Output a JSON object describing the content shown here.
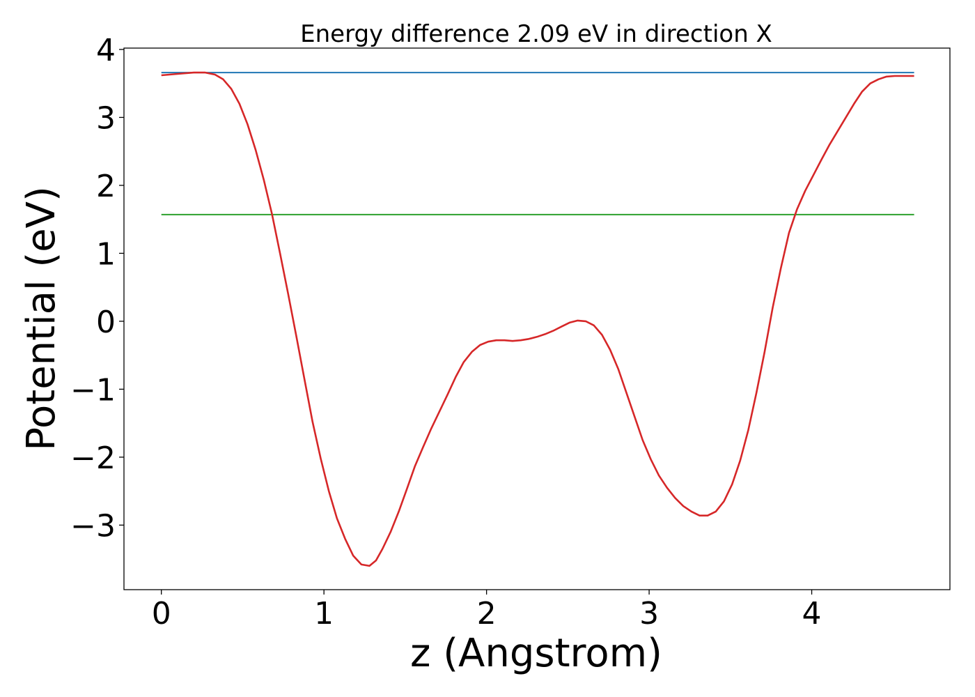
{
  "chart_data": {
    "type": "line",
    "title": "Energy difference 2.09 eV in direction X",
    "xlabel": "z (Angstrom)",
    "ylabel": "Potential (eV)",
    "xlim": [
      -0.23,
      4.85
    ],
    "ylim": [
      -3.95,
      4.02
    ],
    "x_ticks": [
      0,
      1,
      2,
      3,
      4
    ],
    "x_tick_labels": [
      "0",
      "1",
      "2",
      "3",
      "4"
    ],
    "y_ticks": [
      -3,
      -2,
      -1,
      0,
      1,
      2,
      3,
      4
    ],
    "y_tick_labels": [
      "−3",
      "−2",
      "−1",
      "0",
      "1",
      "2",
      "3",
      "4"
    ],
    "grid": false,
    "series": [
      {
        "color": "#1f77b4",
        "x": [
          0,
          4.63
        ],
        "y": [
          3.66,
          3.66
        ]
      },
      {
        "color": "#2ca02c",
        "x": [
          0,
          4.63
        ],
        "y": [
          1.57,
          1.57
        ]
      },
      {
        "color": "#d62728",
        "x": [
          0,
          0.1,
          0.2,
          0.27,
          0.33,
          0.38,
          0.43,
          0.48,
          0.53,
          0.58,
          0.63,
          0.68,
          0.73,
          0.78,
          0.83,
          0.88,
          0.93,
          0.98,
          1.03,
          1.08,
          1.13,
          1.18,
          1.23,
          1.28,
          1.32,
          1.36,
          1.41,
          1.46,
          1.51,
          1.56,
          1.61,
          1.66,
          1.71,
          1.76,
          1.81,
          1.86,
          1.91,
          1.96,
          2.01,
          2.06,
          2.11,
          2.16,
          2.21,
          2.26,
          2.31,
          2.36,
          2.41,
          2.46,
          2.51,
          2.56,
          2.61,
          2.66,
          2.71,
          2.76,
          2.81,
          2.86,
          2.91,
          2.96,
          3.01,
          3.06,
          3.11,
          3.16,
          3.21,
          3.26,
          3.31,
          3.36,
          3.41,
          3.46,
          3.51,
          3.56,
          3.61,
          3.66,
          3.71,
          3.76,
          3.81,
          3.86,
          3.91,
          3.96,
          4.01,
          4.06,
          4.11,
          4.16,
          4.21,
          4.26,
          4.31,
          4.36,
          4.41,
          4.46,
          4.51,
          4.56,
          4.63
        ],
        "y": [
          3.62,
          3.64,
          3.66,
          3.66,
          3.63,
          3.56,
          3.42,
          3.2,
          2.9,
          2.52,
          2.08,
          1.58,
          1.0,
          0.4,
          -0.22,
          -0.85,
          -1.48,
          -2.02,
          -2.5,
          -2.9,
          -3.2,
          -3.45,
          -3.58,
          -3.6,
          -3.52,
          -3.35,
          -3.1,
          -2.8,
          -2.47,
          -2.13,
          -1.85,
          -1.58,
          -1.33,
          -1.08,
          -0.82,
          -0.6,
          -0.45,
          -0.35,
          -0.3,
          -0.28,
          -0.28,
          -0.29,
          -0.28,
          -0.26,
          -0.23,
          -0.19,
          -0.14,
          -0.08,
          -0.02,
          0.01,
          0.0,
          -0.06,
          -0.2,
          -0.42,
          -0.7,
          -1.05,
          -1.4,
          -1.75,
          -2.03,
          -2.27,
          -2.45,
          -2.6,
          -2.72,
          -2.8,
          -2.86,
          -2.86,
          -2.8,
          -2.65,
          -2.4,
          -2.05,
          -1.6,
          -1.05,
          -0.45,
          0.2,
          0.78,
          1.3,
          1.65,
          1.92,
          2.15,
          2.38,
          2.6,
          2.8,
          3.0,
          3.2,
          3.38,
          3.5,
          3.56,
          3.6,
          3.61,
          3.61,
          3.61
        ]
      }
    ]
  }
}
